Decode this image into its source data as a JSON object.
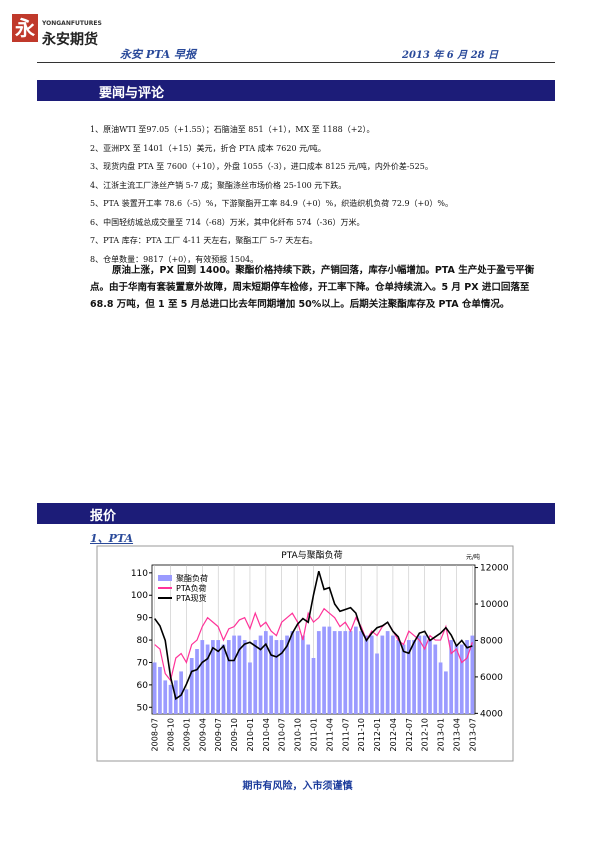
{
  "logo": {
    "cn": "永安期货",
    "en": "YONGANFUTURES"
  },
  "header": {
    "title": "永安 PTA 早报",
    "date": "2013 年 6 月 28 日"
  },
  "news": {
    "title": "要闻与评论",
    "items": [
      "1、原油WTI 至97.05（+1.55）；石脑油至 851（+1），MX 至 1188（+2）。",
      "2、亚洲PX 至 1401（+15）美元，折合 PTA 成本 7620 元/吨。",
      "3、现货内盘 PTA 至 7600（+10），外盘 1055（-3），进口成本 8125 元/吨，内外价差-525。",
      "4、江浙主流工厂涤丝产销 5-7 成；聚酯涤丝市场价格 25-100 元下跌。",
      "5、PTA 装置开工率 78.6（-5）%，下游聚酯开工率 84.9（+0）%，织造织机负荷 72.9（+0）%。",
      "6、中国轻纺城总成交量至 714（-68）万米，其中化纤布 574（-36）万米。",
      "7、PTA 库存：PTA 工厂 4-11 天左右，聚酯工厂 5-7 天左右。",
      "8、仓单数量：9817（+0），有效预报 1504。"
    ],
    "comment": "原油上涨，PX 回到 1400。聚酯价格持续下跌，产销回落，库存小幅增加。PTA 生产处于盈亏平衡点。由于华南有套装置意外故障，周末短期停车检修，开工率下降。仓单持续流入。5 月 PX 进口回落至 68.8 万吨，但 1 至 5 月总进口比去年同期增加 50%以上。后期关注聚酯库存及 PTA 仓单情况。"
  },
  "quotes": {
    "title": "报价",
    "subtitle": "1、PTA"
  },
  "chart_data": {
    "type": "combo",
    "title": "PTA与聚酯负荷",
    "y2_unit": "元/吨",
    "categories": [
      "2008-07",
      null,
      null,
      "2008-10",
      null,
      null,
      "2009-01",
      null,
      null,
      "2009-04",
      null,
      null,
      "2009-07",
      null,
      null,
      "2009-10",
      null,
      null,
      "2010-01",
      null,
      null,
      "2010-04",
      null,
      null,
      "2010-07",
      null,
      null,
      "2010-10",
      null,
      null,
      "2011-01",
      null,
      null,
      "2011-04",
      null,
      null,
      "2011-07",
      null,
      null,
      "2011-10",
      null,
      null,
      "2012-01",
      null,
      null,
      "2012-04",
      null,
      null,
      "2012-07",
      null,
      null,
      "2012-10",
      null,
      null,
      "2013-01",
      null,
      null,
      "2013-04",
      null,
      null,
      "2013-07"
    ],
    "series": [
      {
        "name": "聚酯负荷",
        "color": "#9b9bff",
        "kind": "bar",
        "values": [
          70,
          68,
          62,
          60,
          62,
          66,
          58,
          72,
          76,
          80,
          78,
          80,
          80,
          78,
          80,
          82,
          82,
          80,
          70,
          80,
          82,
          84,
          82,
          80,
          80,
          82,
          84,
          84,
          82,
          78,
          72,
          84,
          86,
          86,
          84,
          84,
          84,
          84,
          86,
          84,
          82,
          82,
          74,
          82,
          84,
          82,
          80,
          78,
          80,
          80,
          82,
          82,
          80,
          78,
          70,
          66,
          80,
          78,
          78,
          80,
          82
        ]
      },
      {
        "name": "PTA负荷",
        "color": "#ff3399",
        "kind": "line",
        "values": [
          78,
          76,
          65,
          62,
          72,
          74,
          70,
          78,
          80,
          86,
          90,
          88,
          86,
          80,
          85,
          86,
          89,
          90,
          85,
          92,
          86,
          88,
          84,
          82,
          88,
          90,
          92,
          88,
          80,
          92,
          88,
          90,
          94,
          92,
          90,
          86,
          88,
          84,
          90,
          86,
          80,
          84,
          82,
          86,
          88,
          84,
          80,
          78,
          84,
          82,
          80,
          76,
          82,
          80,
          80,
          86,
          74,
          76,
          70,
          72,
          79
        ]
      },
      {
        "name": "PTA现货",
        "color": "#000000",
        "kind": "line",
        "axis": "y2",
        "values": [
          9200,
          8800,
          8000,
          6000,
          4800,
          5000,
          5600,
          6300,
          6400,
          6800,
          7000,
          7600,
          7400,
          7700,
          6900,
          6900,
          7500,
          7800,
          7900,
          7700,
          7500,
          7800,
          7200,
          7100,
          7300,
          7700,
          8400,
          8900,
          9200,
          9000,
          10500,
          11800,
          10800,
          10900,
          10000,
          9600,
          9700,
          9800,
          9500,
          8600,
          8000,
          8400,
          8700,
          8800,
          9000,
          8500,
          8200,
          7400,
          7300,
          7900,
          8400,
          8500,
          8000,
          8200,
          8400,
          8700,
          8300,
          7700,
          8000,
          7600,
          7700
        ]
      }
    ],
    "ylim": [
      47,
      113.5
    ],
    "yticks": [
      50,
      60,
      70,
      80,
      90,
      100,
      110
    ],
    "y2lim": [
      3965,
      12140
    ],
    "y2ticks": [
      4000,
      6000,
      8000,
      10000,
      12000
    ],
    "legend": "upper-left",
    "grid": true
  },
  "footer": "期市有风险，入市须谨慎"
}
